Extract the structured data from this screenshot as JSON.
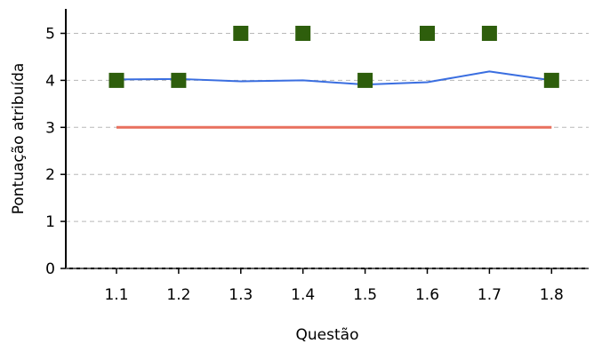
{
  "chart_data": {
    "type": "line",
    "xlabel": "Questão",
    "ylabel": "Pontuação atribuída",
    "categories": [
      "1.1",
      "1.2",
      "1.3",
      "1.4",
      "1.5",
      "1.6",
      "1.7",
      "1.8"
    ],
    "ylim": [
      0,
      5
    ],
    "yticks": [
      "0",
      "1",
      "2",
      "3",
      "4",
      "5"
    ],
    "grid": "horizontal dashed",
    "series": [
      {
        "kind": "line",
        "color": "#3a6ee0",
        "values": [
          4.02,
          4.03,
          3.98,
          4.0,
          3.91,
          3.96,
          4.19,
          4.0
        ]
      },
      {
        "kind": "line",
        "color": "#e8705e",
        "values": [
          3,
          3,
          3,
          3,
          3,
          3,
          3,
          3
        ]
      },
      {
        "kind": "marker-square",
        "color": "#2e5e0c",
        "values": [
          4,
          4,
          5,
          5,
          4,
          5,
          5,
          4
        ]
      }
    ]
  }
}
